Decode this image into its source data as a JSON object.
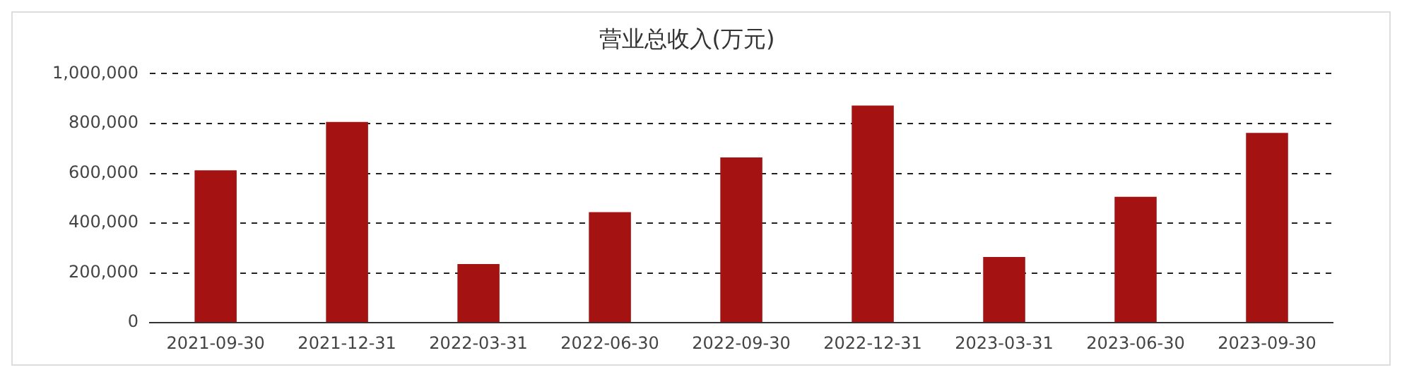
{
  "chart_data": {
    "type": "bar",
    "title": "营业总收入(万元)",
    "categories": [
      "2021-09-30",
      "2021-12-31",
      "2022-03-31",
      "2022-06-30",
      "2022-09-30",
      "2022-12-31",
      "2023-03-31",
      "2023-06-30",
      "2023-09-30"
    ],
    "values": [
      612000,
      806000,
      236000,
      444000,
      664000,
      872000,
      264000,
      506000,
      762000
    ],
    "color": "#a51212",
    "ylim": [
      0,
      1000000
    ],
    "yticks": [
      {
        "value": 0,
        "label": "0"
      },
      {
        "value": 200000,
        "label": "200,000"
      },
      {
        "value": 400000,
        "label": "400,000"
      },
      {
        "value": 600000,
        "label": "600,000"
      },
      {
        "value": 800000,
        "label": "800,000"
      },
      {
        "value": 1000000,
        "label": "1,000,000"
      }
    ],
    "grid": "y",
    "legend": false
  }
}
